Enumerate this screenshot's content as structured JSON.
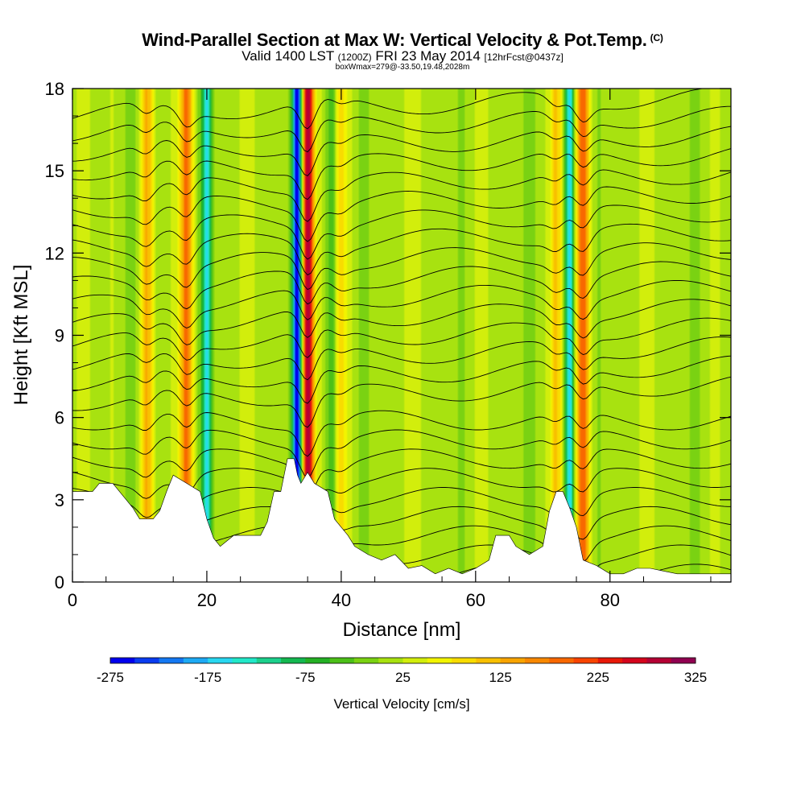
{
  "chart_data": {
    "type": "heatmap",
    "title": "Wind-Parallel Section at Max W: Vertical Velocity & Pot.Temp.",
    "title_mark": "(C)",
    "subtitle_main": "Valid 1400 LST",
    "subtitle_utc": "(1200Z)",
    "subtitle_date": "FRI 23 May 2014",
    "subtitle_fcst": "[12hrFcst@0437z]",
    "box_info": "boxWmax=279@-33.50,19.48,2028m",
    "xlabel": "Distance [nm]",
    "ylabel": "Height [Kft MSL]",
    "xlim": [
      0,
      98
    ],
    "ylim": [
      0,
      18
    ],
    "x_ticks": [
      0,
      20,
      40,
      60,
      80
    ],
    "y_ticks": [
      0,
      3,
      6,
      9,
      12,
      15,
      18
    ],
    "colorbar": {
      "title": "Vertical Velocity [cm/s]",
      "range": [
        -275,
        325
      ],
      "tick_values": [
        -275,
        -175,
        -75,
        25,
        125,
        225,
        325
      ],
      "colors": [
        "#0000ee",
        "#0a3cf0",
        "#1478f2",
        "#1eaaf4",
        "#28d7f0",
        "#22e8c8",
        "#1cd08c",
        "#14b850",
        "#24b024",
        "#4cc018",
        "#7ad212",
        "#a8e210",
        "#d2ee0c",
        "#f2f400",
        "#f8dc00",
        "#f8c000",
        "#f8a400",
        "#f88800",
        "#f86800",
        "#f84400",
        "#e81808",
        "#d4041c",
        "#b40034",
        "#900050"
      ]
    },
    "updraft_bands": [
      {
        "x_center": 35,
        "peak_cm_s": 279,
        "paired_downdraft_x": 33.5
      },
      {
        "x_center": 17,
        "peak_cm_s": 160,
        "paired_downdraft_x": 20
      },
      {
        "x_center": 11,
        "peak_cm_s": 110
      },
      {
        "x_center": 76,
        "peak_cm_s": 170,
        "paired_downdraft_x": 74
      },
      {
        "x_center": 72,
        "peak_cm_s": 90
      },
      {
        "x_center": 40,
        "peak_cm_s": 60,
        "paired_downdraft_x": 38.5
      }
    ],
    "pot_temp_contour_interval_K": 1,
    "terrain_kft": [
      [
        0,
        3.3
      ],
      [
        3,
        3.3
      ],
      [
        4,
        3.6
      ],
      [
        6,
        3.6
      ],
      [
        8,
        3.0
      ],
      [
        9,
        2.7
      ],
      [
        10,
        2.3
      ],
      [
        12,
        2.3
      ],
      [
        13,
        2.6
      ],
      [
        14,
        3.3
      ],
      [
        15,
        3.9
      ],
      [
        17,
        3.6
      ],
      [
        19,
        3.3
      ],
      [
        20,
        2.3
      ],
      [
        21,
        1.6
      ],
      [
        22,
        1.3
      ],
      [
        24,
        1.7
      ],
      [
        28,
        1.7
      ],
      [
        29,
        2.2
      ],
      [
        30,
        3.3
      ],
      [
        31,
        3.3
      ],
      [
        32,
        4.5
      ],
      [
        33,
        4.5
      ],
      [
        33.5,
        3.9
      ],
      [
        34,
        3.6
      ],
      [
        35,
        4.0
      ],
      [
        36,
        3.6
      ],
      [
        38,
        3.3
      ],
      [
        39,
        2.3
      ],
      [
        41,
        1.7
      ],
      [
        42,
        1.3
      ],
      [
        44,
        1.0
      ],
      [
        46,
        0.8
      ],
      [
        48,
        1.0
      ],
      [
        50,
        0.5
      ],
      [
        52,
        0.6
      ],
      [
        54,
        0.3
      ],
      [
        56,
        0.5
      ],
      [
        58,
        0.3
      ],
      [
        60,
        0.5
      ],
      [
        62,
        0.8
      ],
      [
        63,
        1.7
      ],
      [
        65,
        1.7
      ],
      [
        66,
        1.3
      ],
      [
        68,
        1.0
      ],
      [
        70,
        1.3
      ],
      [
        71,
        2.6
      ],
      [
        72,
        3.3
      ],
      [
        73,
        3.3
      ],
      [
        74,
        2.7
      ],
      [
        75,
        2.0
      ],
      [
        76,
        0.8
      ],
      [
        78,
        0.6
      ],
      [
        80,
        0.3
      ],
      [
        82,
        0.3
      ],
      [
        84,
        0.5
      ],
      [
        86,
        0.5
      ],
      [
        88,
        0.4
      ],
      [
        90,
        0.3
      ],
      [
        92,
        0.3
      ],
      [
        94,
        0.3
      ],
      [
        96,
        0.3
      ],
      [
        98,
        0.3
      ]
    ]
  }
}
